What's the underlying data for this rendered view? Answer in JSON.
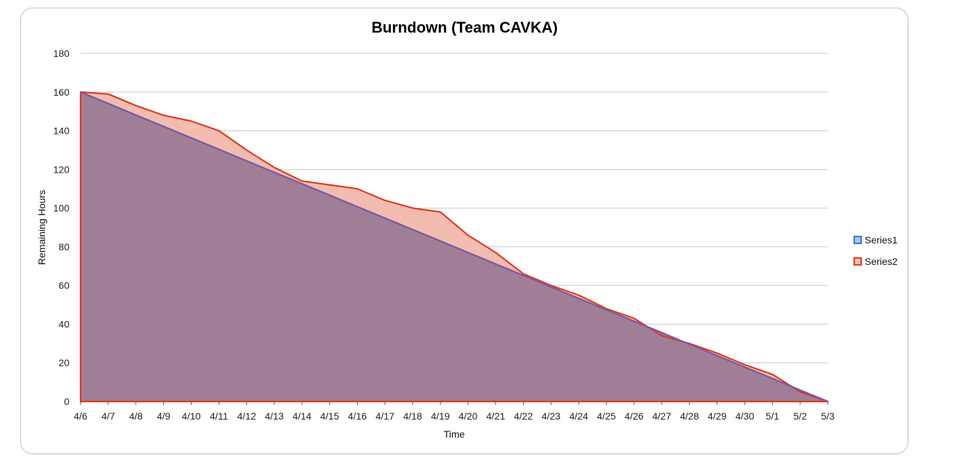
{
  "chart_data": {
    "type": "area",
    "title": "Burndown (Team CAVKA)",
    "xlabel": "Time",
    "ylabel": "Remaining  Hours",
    "ylim": [
      0,
      180
    ],
    "yticks": [
      0,
      20,
      40,
      60,
      80,
      100,
      120,
      140,
      160,
      180
    ],
    "categories": [
      "4/6",
      "4/7",
      "4/8",
      "4/9",
      "4/10",
      "4/11",
      "4/12",
      "4/13",
      "4/14",
      "4/15",
      "4/16",
      "4/17",
      "4/18",
      "4/19",
      "4/20",
      "4/21",
      "4/22",
      "4/23",
      "4/24",
      "4/25",
      "4/26",
      "4/27",
      "4/28",
      "4/29",
      "4/30",
      "5/1",
      "5/2",
      "5/3"
    ],
    "series": [
      {
        "name": "Series1",
        "color": "#7a5aa4",
        "fill": "#a07e96",
        "values": [
          160,
          154.1,
          148.1,
          142.2,
          136.3,
          130.4,
          124.4,
          118.5,
          112.6,
          106.7,
          100.7,
          94.8,
          88.9,
          83.0,
          77.0,
          71.1,
          65.2,
          59.3,
          53.3,
          47.4,
          41.5,
          35.6,
          29.6,
          23.7,
          17.8,
          11.9,
          5.9,
          0
        ]
      },
      {
        "name": "Series2",
        "color": "#de3a1a",
        "fill": "#f2bcb0",
        "values": [
          160,
          159,
          153,
          148,
          145,
          140,
          130,
          121,
          114,
          112,
          110,
          104,
          100,
          98,
          86,
          77,
          66,
          60,
          55,
          48,
          43,
          34,
          30,
          25,
          19,
          14,
          5,
          0
        ]
      }
    ],
    "legend_position": "right",
    "grid": true
  }
}
